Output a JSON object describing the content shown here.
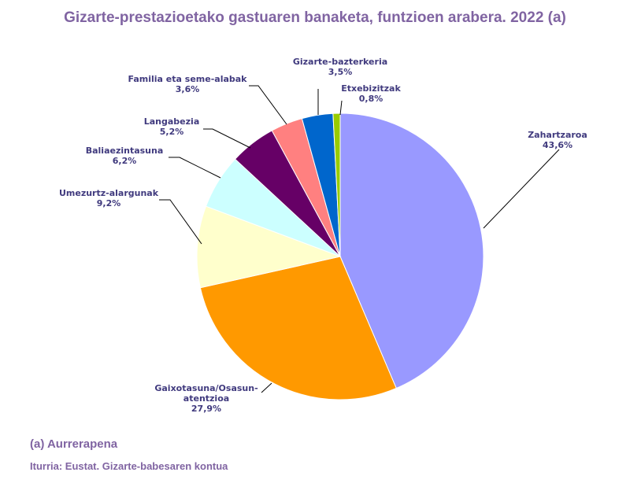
{
  "chart_data": {
    "type": "pie",
    "title": "Gizarte-prestazioetako gastuaren banaketa, funtzioen arabera. 2022 (a)",
    "categories": [
      "Zahartzaroa",
      "Gaixotasuna/Osasun-atentzioa",
      "Umezurtz-alargunak",
      "Baliaezintasuna",
      "Langabezia",
      "Familia eta seme-alabak",
      "Gizarte-bazterkeria",
      "Etxebizitzak"
    ],
    "values": [
      43.6,
      27.9,
      9.2,
      6.2,
      5.2,
      3.6,
      3.5,
      0.8
    ],
    "value_labels": [
      "43,6%",
      "27,9%",
      "9,2%",
      "6,2%",
      "5,2%",
      "3,6%",
      "3,5%",
      "0,8%"
    ],
    "label_lines": [
      [
        "Zahartzaroa"
      ],
      [
        "Gaixotasuna/Osasun-",
        "atentzioa"
      ],
      [
        "Umezurtz-alargunak"
      ],
      [
        "Baliaezintasuna"
      ],
      [
        "Langabezia"
      ],
      [
        "Familia eta seme-alabak"
      ],
      [
        "Gizarte-bazterkeria"
      ],
      [
        "Etxebizitzak"
      ]
    ],
    "colors": [
      "#9999ff",
      "#ff9900",
      "#ffffcc",
      "#ccffff",
      "#660066",
      "#ff8080",
      "#0066cc",
      "#99cc00"
    ],
    "legend": "none"
  },
  "notes": {
    "footnote": "(a) Aurrerapena",
    "source": "Iturria: Eustat. Gizarte-babesaren kontua"
  }
}
